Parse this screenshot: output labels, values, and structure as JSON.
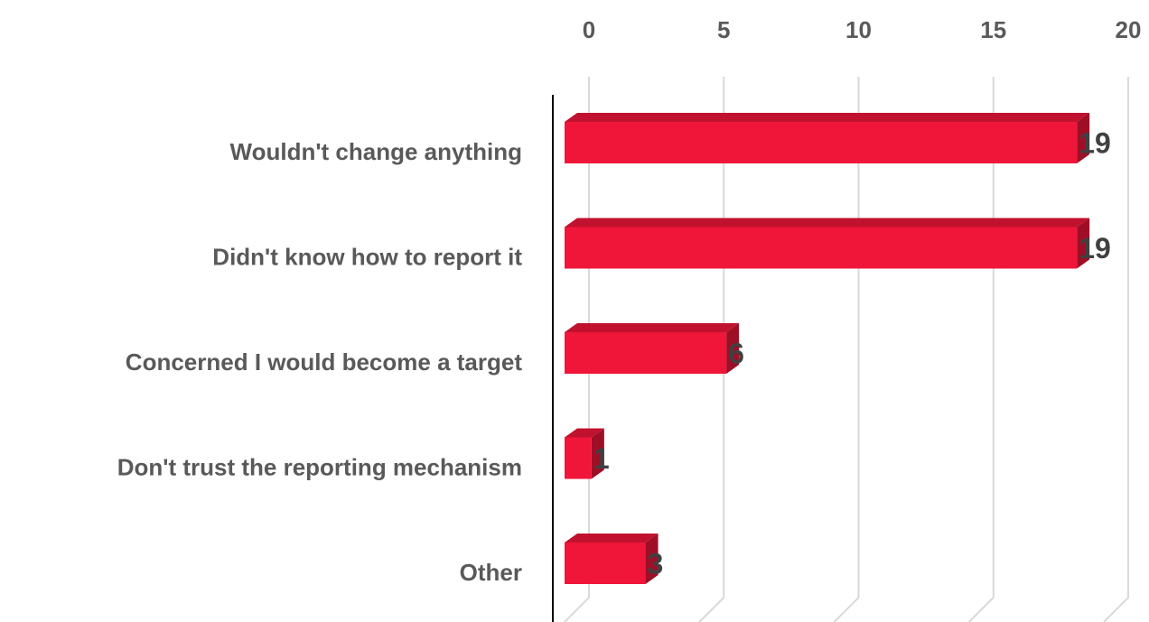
{
  "chart_data": {
    "type": "bar",
    "orientation": "horizontal",
    "categories": [
      "Wouldn't change anything",
      "Didn't know how to report it",
      "Concerned I would become a target",
      "Don't trust the reporting mechanism",
      "Other"
    ],
    "values": [
      19,
      19,
      6,
      1,
      3
    ],
    "color": "#f0163a",
    "xlim": [
      0,
      20
    ],
    "xticks": [
      0,
      5,
      10,
      15,
      20
    ],
    "grid": true
  }
}
